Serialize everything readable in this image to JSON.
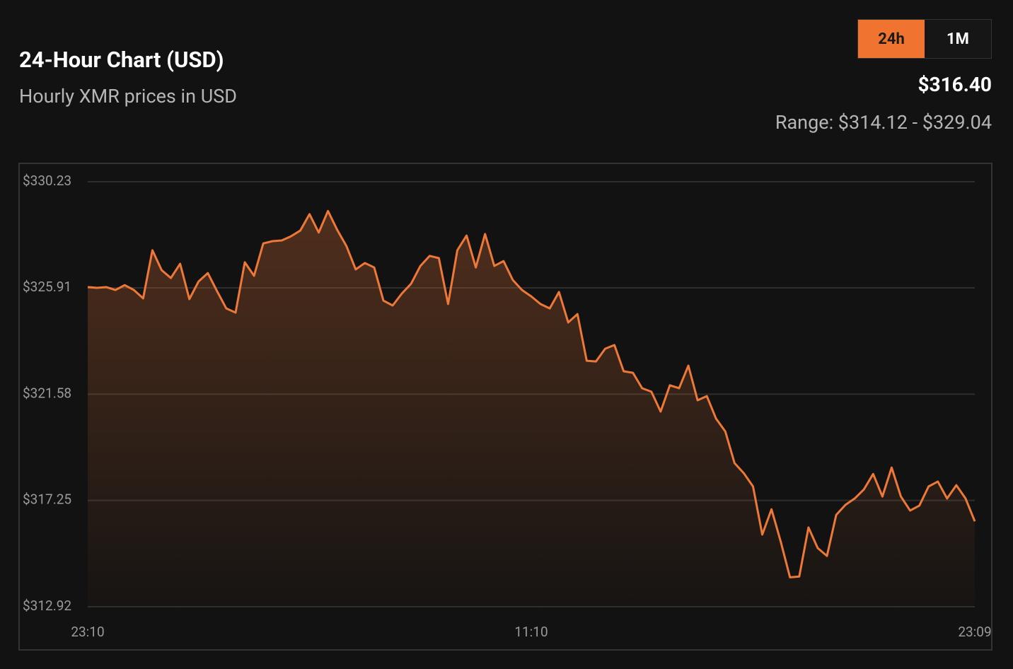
{
  "header": {
    "title": "24-Hour Chart (USD)",
    "subtitle": "Hourly XMR prices in USD",
    "buttons": [
      "24h",
      "1M"
    ],
    "active_button": 0,
    "price": "$316.40",
    "range": "Range: $314.12 - $329.04"
  },
  "chart_data": {
    "type": "area",
    "color": "#ee7838",
    "grid": true,
    "ylim": [
      312.92,
      330.23
    ],
    "yticks": [
      {
        "value": 312.92,
        "label": "$312.92"
      },
      {
        "value": 317.25,
        "label": "$317.25"
      },
      {
        "value": 321.58,
        "label": "$321.58"
      },
      {
        "value": 325.91,
        "label": "$325.91"
      },
      {
        "value": 330.23,
        "label": "$330.23"
      }
    ],
    "categories": [
      "23:10",
      null,
      null,
      null,
      null,
      null,
      null,
      null,
      null,
      null,
      null,
      null,
      null,
      null,
      null,
      null,
      null,
      null,
      null,
      null,
      null,
      null,
      null,
      null,
      null,
      null,
      null,
      null,
      null,
      null,
      null,
      null,
      null,
      null,
      null,
      null,
      null,
      null,
      null,
      null,
      null,
      null,
      null,
      null,
      null,
      null,
      null,
      null,
      "11:10",
      null,
      null,
      null,
      null,
      null,
      null,
      null,
      null,
      null,
      null,
      null,
      null,
      null,
      null,
      null,
      null,
      null,
      null,
      null,
      null,
      null,
      null,
      null,
      null,
      null,
      null,
      null,
      null,
      null,
      null,
      null,
      null,
      null,
      null,
      null,
      null,
      null,
      null,
      null,
      null,
      null,
      null,
      null,
      null,
      null,
      null,
      null,
      "23:09"
    ],
    "values": [
      325.94,
      325.91,
      325.94,
      325.82,
      326.02,
      325.82,
      325.48,
      327.44,
      326.63,
      326.31,
      326.89,
      325.45,
      326.17,
      326.51,
      325.77,
      325.07,
      324.9,
      326.95,
      326.4,
      327.72,
      327.81,
      327.84,
      328.01,
      328.24,
      328.91,
      328.16,
      329.04,
      328.27,
      327.61,
      326.66,
      326.92,
      326.74,
      325.39,
      325.19,
      325.68,
      326.08,
      326.8,
      327.21,
      327.12,
      325.25,
      327.44,
      328.04,
      326.74,
      328.1,
      326.8,
      327.0,
      326.23,
      325.82,
      325.56,
      325.25,
      325.07,
      325.74,
      324.5,
      324.84,
      322.94,
      322.91,
      323.43,
      323.58,
      322.51,
      322.45,
      321.82,
      321.68,
      320.87,
      321.94,
      321.82,
      322.74,
      321.33,
      321.5,
      320.58,
      320.06,
      318.77,
      318.36,
      317.82,
      315.86,
      316.89,
      315.57,
      314.12,
      314.15,
      316.15,
      315.31,
      314.99,
      316.66,
      317.07,
      317.33,
      317.7,
      318.33,
      317.41,
      318.59,
      317.41,
      316.84,
      317.04,
      317.82,
      318.02,
      317.33,
      317.87,
      317.33,
      316.4
    ]
  }
}
